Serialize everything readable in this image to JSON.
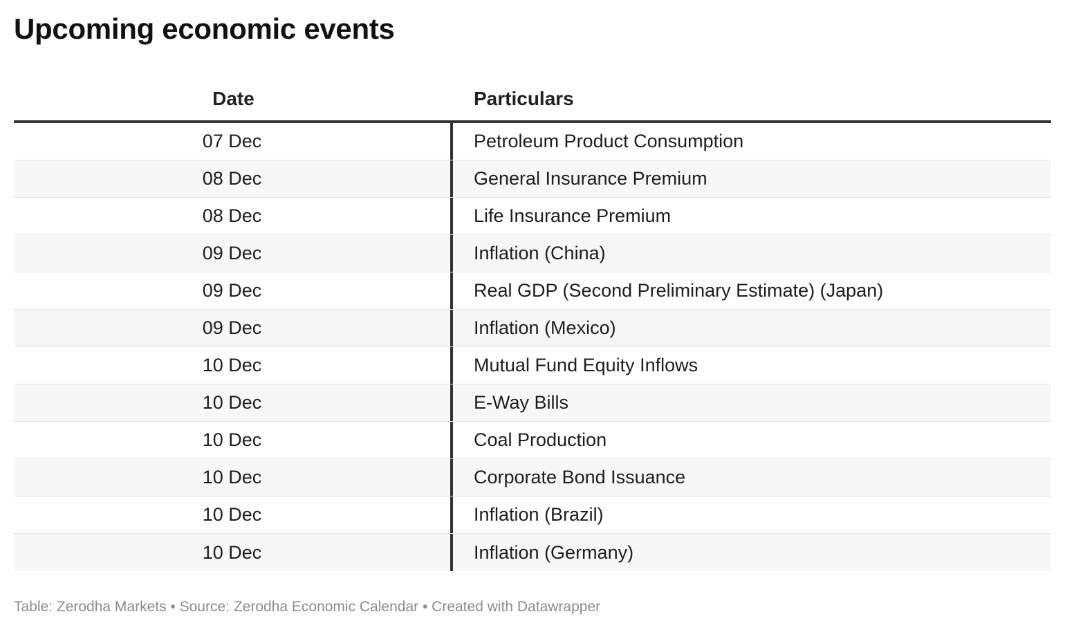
{
  "title": "Upcoming economic events",
  "table": {
    "headers": {
      "date": "Date",
      "particulars": "Particulars"
    },
    "rows": [
      {
        "date": "07 Dec",
        "particulars": "Petroleum Product Consumption"
      },
      {
        "date": "08 Dec",
        "particulars": "General Insurance Premium"
      },
      {
        "date": "08 Dec",
        "particulars": "Life Insurance Premium"
      },
      {
        "date": "09 Dec",
        "particulars": "Inflation (China)"
      },
      {
        "date": "09 Dec",
        "particulars": "Real GDP (Second Preliminary Estimate) (Japan)"
      },
      {
        "date": "09 Dec",
        "particulars": "Inflation (Mexico)"
      },
      {
        "date": "10 Dec",
        "particulars": "Mutual Fund Equity Inflows"
      },
      {
        "date": "10 Dec",
        "particulars": "E-Way Bills"
      },
      {
        "date": "10 Dec",
        "particulars": "Coal Production"
      },
      {
        "date": "10 Dec",
        "particulars": "Corporate Bond Issuance"
      },
      {
        "date": "10 Dec",
        "particulars": "Inflation (Brazil)"
      },
      {
        "date": "10 Dec",
        "particulars": "Inflation (Germany)"
      }
    ]
  },
  "footer": "Table: Zerodha Markets • Source: Zerodha Economic Calendar • Created with Datawrapper"
}
